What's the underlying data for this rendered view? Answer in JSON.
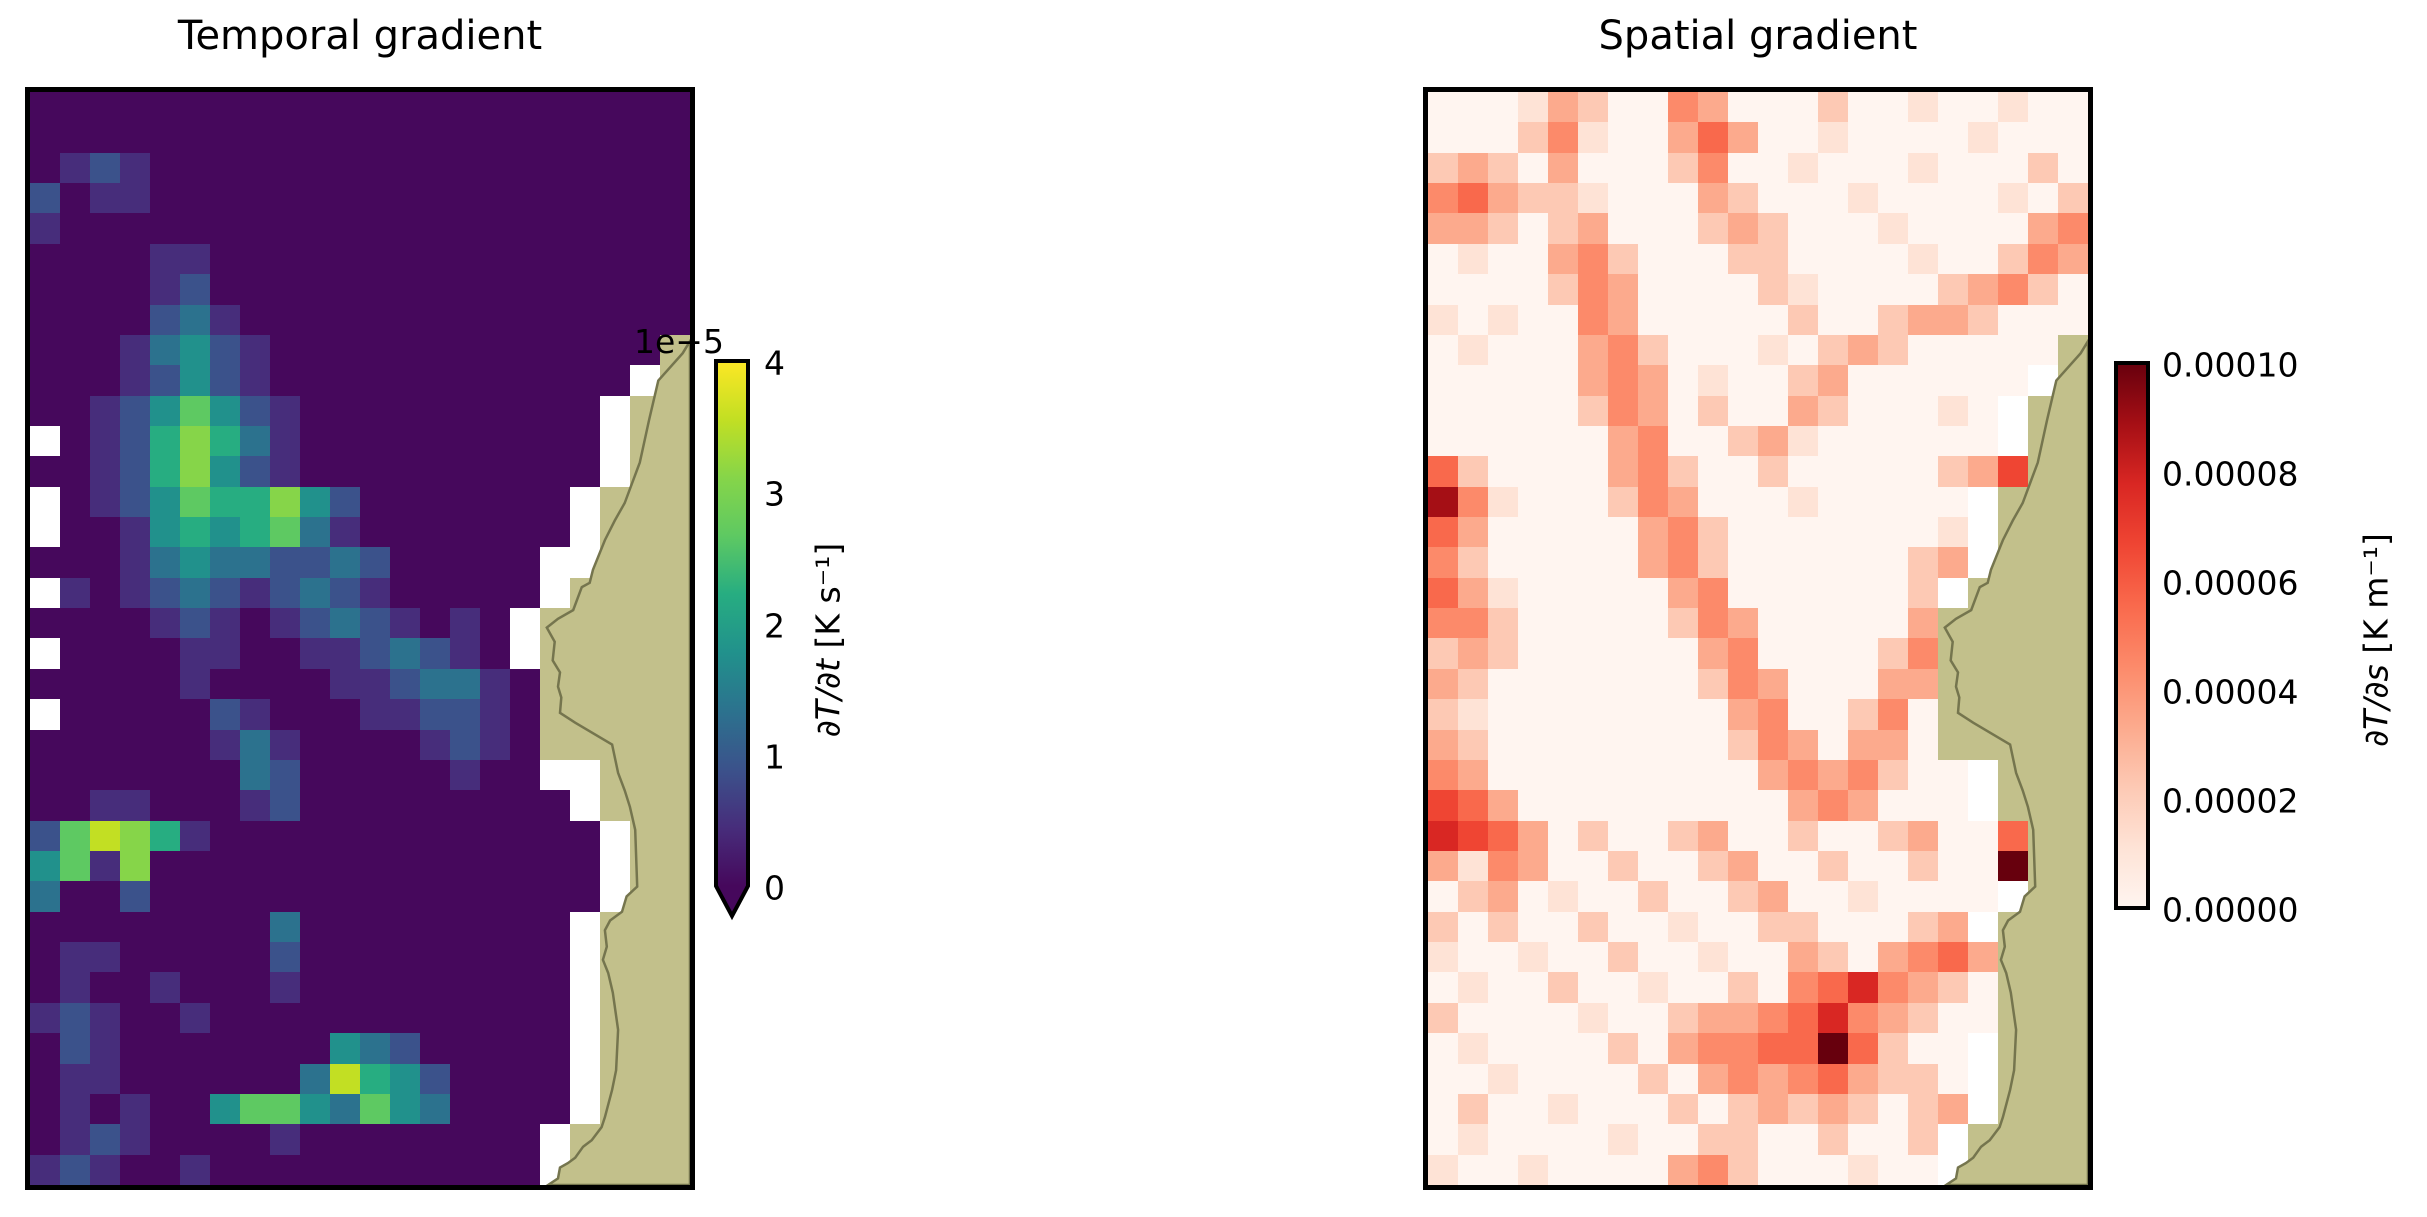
{
  "figure": {
    "background": "#ffffff",
    "titles": {
      "left": "Temporal gradient",
      "right": "Spatial gradient"
    }
  },
  "palettes": {
    "viridis": [
      "#46085c",
      "#472d7b",
      "#3b528b",
      "#2c728e",
      "#21918c",
      "#27ad81",
      "#5ec962",
      "#86d549",
      "#c2df23",
      "#fde725"
    ],
    "reds": [
      "#fff5f0",
      "#fee3d6",
      "#fdc9b4",
      "#fcaa8d",
      "#fc8a6a",
      "#f9694c",
      "#ef4533",
      "#d92723",
      "#a50f15",
      "#67000d"
    ],
    "nan": "#ffffff"
  },
  "land": {
    "color": "#c2c08b",
    "edge_color": "#75754e",
    "coastline": [
      [
        1.0,
        0.228
      ],
      [
        0.989,
        0.239
      ],
      [
        0.952,
        0.264
      ],
      [
        0.938,
        0.3
      ],
      [
        0.924,
        0.339
      ],
      [
        0.901,
        0.376
      ],
      [
        0.886,
        0.392
      ],
      [
        0.871,
        0.41
      ],
      [
        0.853,
        0.437
      ],
      [
        0.848,
        0.449
      ],
      [
        0.836,
        0.453
      ],
      [
        0.823,
        0.474
      ],
      [
        0.8,
        0.482
      ],
      [
        0.783,
        0.49
      ],
      [
        0.795,
        0.503
      ],
      [
        0.792,
        0.52
      ],
      [
        0.803,
        0.531
      ],
      [
        0.8,
        0.544
      ],
      [
        0.805,
        0.554
      ],
      [
        0.803,
        0.568
      ],
      [
        0.826,
        0.577
      ],
      [
        0.882,
        0.597
      ],
      [
        0.891,
        0.623
      ],
      [
        0.901,
        0.639
      ],
      [
        0.909,
        0.654
      ],
      [
        0.917,
        0.675
      ],
      [
        0.92,
        0.727
      ],
      [
        0.904,
        0.736
      ],
      [
        0.897,
        0.75
      ],
      [
        0.879,
        0.758
      ],
      [
        0.871,
        0.767
      ],
      [
        0.874,
        0.782
      ],
      [
        0.868,
        0.794
      ],
      [
        0.876,
        0.806
      ],
      [
        0.883,
        0.824
      ],
      [
        0.891,
        0.858
      ],
      [
        0.888,
        0.895
      ],
      [
        0.882,
        0.913
      ],
      [
        0.871,
        0.938
      ],
      [
        0.866,
        0.947
      ],
      [
        0.851,
        0.959
      ],
      [
        0.838,
        0.965
      ],
      [
        0.826,
        0.975
      ],
      [
        0.815,
        0.98
      ],
      [
        0.803,
        0.984
      ],
      [
        0.8,
        0.994
      ],
      [
        0.785,
        1.0
      ],
      [
        1.0,
        1.0
      ]
    ]
  },
  "chart_data": [
    {
      "type": "heatmap",
      "title": "Temporal gradient",
      "colormap": "viridis",
      "vmin": 0,
      "vmax": 4e-05,
      "value_per_level": 4.444e-06,
      "legend_note": "grid chars: 0-9 = value level (level*4.444e-6 K/s), . = missing data (white), L = land",
      "colorbar": {
        "offset_text": "1e−5",
        "ticks_top_to_bottom": [
          "4",
          "3",
          "2",
          "1",
          "0"
        ],
        "label_var": "∂T/∂t",
        "label_unit": " [K s⁻¹]",
        "extend": "min"
      },
      "grid": [
        "0000000000000000000000",
        "0000000000000000000000",
        "0121000000000000000000",
        "2011000000000000000000",
        "1000000000000000000000",
        "0000110000000000000000",
        "0000120000000000000000",
        "0000231000000000000000",
        "000134210000000000000L",
        "00012421000000000000.L",
        "0012464210000000000.LL",
        ".012575310000000000.LL",
        "0012574210000000000.LL",
        ".01246557420000000.LLL",
        ".00145456310000000.LLL",
        "00013433223200000..LLL",
        ".1012321232100000.LLLL",
        "0000121012321010.LLLLL",
        ".000011001123210.LLLLL",
        "00000100001123310LLLLL",
        ".0000021000112210LLLLL",
        "00000013100001210LLLLL",
        "00000003200000100..LLL",
        "001100012000000000.LLL",
        "2687510000000000000.LL",
        "4617000000000000000.LL",
        "3002000000000000000.LL",
        "000000003000000000.LLL",
        "011000002000000000.LLL",
        "010010001000000000.LLL",
        "121001000000000000.LLL",
        "021000000043200000.LLL",
        "011000000385420000.LLL",
        "010100466436430000.LLL",
        "01210000100000000.LLLL",
        "12100100000000000.LLLL"
      ]
    },
    {
      "type": "heatmap",
      "title": "Spatial gradient",
      "colormap": "Reds",
      "vmin": 0,
      "vmax": 0.0001,
      "value_per_level": 1.111e-05,
      "legend_note": "grid chars: 0-9 = value level (level*1.111e-5 K/m), . = missing data (white), L = land",
      "colorbar": {
        "offset_text": "",
        "ticks_top_to_bottom": [
          "0.00010",
          "0.00008",
          "0.00006",
          "0.00004",
          "0.00002",
          "0.00000"
        ],
        "label_var": "∂T/∂s",
        "label_unit": " [K m⁻¹]",
        "extend": "none"
      },
      "grid": [
        "0001320043000200100100",
        "0002410035300100001000",
        "2320300024001000100020",
        "4532210003200010000102",
        "3320230002320001000034",
        "0100342000220000100243",
        "0000243000021000023420",
        "1010043000002002332000",
        "010003420001023200000L",
        "00000343010023000000.L",
        "0000024302003200010.LL",
        "0000003400231000000.LL",
        "52000034200200000236LL",
        "841000243000100000.LLL",
        "530000034200000001.LLL",
        "420000034200000023.LLL",
        "53100000340000002.LLLL",
        "44200000243000003LLLLL",
        "23200000034000024LLLLL",
        "32000000024300033LLLLL",
        "21000000003400240LLLLL",
        "32000000002430330LLLLL",
        "430000000003434200.LLL",
        "653000000000343000.LLL",
        "76530200230020023005LL",
        "31430020023002002009LL",
        "0230100200230010000.LL",
        "202002001002200023.LLL",
        "1001002001003203453LLL",
        "0100200100204574320LLL",
        "2000010023345743200LLL",
        "010000203445595200.LLL",
        "001000020343453220.LLL",
        "020010002023232023.LLL",
        "01000010022002002.LLLL",
        "10010000342000100.LLLL"
      ]
    }
  ]
}
